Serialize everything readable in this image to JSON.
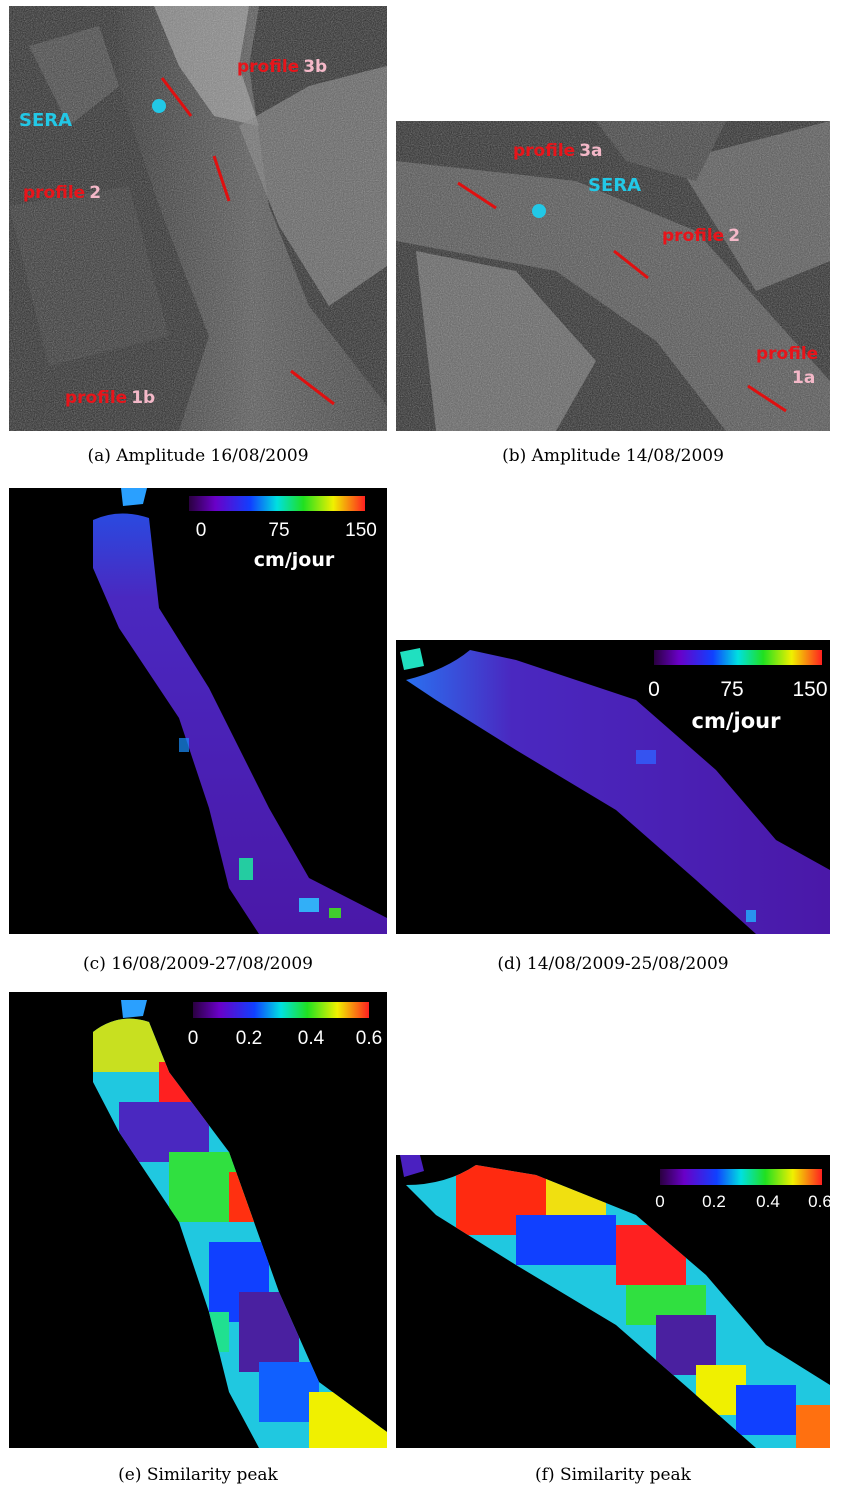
{
  "figure": {
    "panel_a": {
      "labels": {
        "profile_3b_word": "profile",
        "profile_3b_id": "3b",
        "sera": "SERA",
        "profile_2_word": "profile",
        "profile_2_id": "2",
        "profile_1b_word": "profile",
        "profile_1b_id": "1b"
      },
      "caption": "(a) Amplitude 16/08/2009"
    },
    "panel_b": {
      "labels": {
        "profile_3a_word": "profile",
        "profile_3a_id": "3a",
        "sera": "SERA",
        "profile_2_word": "profile",
        "profile_2_id": "2",
        "profile_1a_word": "profile",
        "profile_1a_id": "1a"
      },
      "caption": "(b) Amplitude 14/08/2009"
    },
    "panel_c": {
      "colorbar": {
        "min": "0",
        "mid": "75",
        "max": "150",
        "unit": "cm/jour"
      },
      "caption": "(c) 16/08/2009-27/08/2009"
    },
    "panel_d": {
      "colorbar": {
        "min": "0",
        "mid": "75",
        "max": "150",
        "unit": "cm/jour"
      },
      "caption": "(d) 14/08/2009-25/08/2009"
    },
    "panel_e": {
      "colorbar": {
        "t0": "0",
        "t1": "0.2",
        "t2": "0.4",
        "t3": "0.6"
      },
      "caption": "(e) Similarity peak"
    },
    "panel_f": {
      "colorbar": {
        "t0": "0",
        "t1": "0.2",
        "t2": "0.4",
        "t3": "0.6"
      },
      "caption": "(f) Similarity peak"
    },
    "colors": {
      "profile_label": "#e8141a",
      "profile_id": "#f4b8c8",
      "sera": "#22c8e6",
      "profile_line": "#e01010"
    }
  }
}
